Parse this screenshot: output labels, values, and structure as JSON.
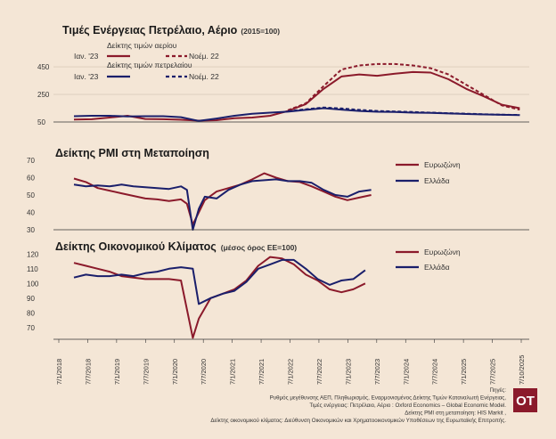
{
  "logo_text": "OT",
  "colors": {
    "eurozone_gas": "#8b1a2b",
    "greece_oil": "#1a1f6b",
    "background": "#f4e6d6",
    "grid": "#c8b8a8"
  },
  "x_axis_labels": [
    "7/1/2018",
    "7/7/2018",
    "7/1/2019",
    "7/7/2019",
    "7/1/2020",
    "7/7/2020",
    "7/1/2021",
    "7/7/2021",
    "7/1/2022",
    "7/7/2022",
    "7/1/2023",
    "7/7/2023",
    "7/1/2024",
    "7/7/2024",
    "7/1/2025",
    "7/7/2025",
    "7/10/2025"
  ],
  "source_lines": [
    "Πηγές:",
    "Ρυθμός μεγέθυνσης ΑΕΠ, Πληθωρισμός, Εναρμονισμένος Δείκτης Τιμών Καταναλωτή Ενέργειας,",
    "Τιμές ενέργειας: Πετρέλαιο, Αέριο : Oxford Economics – Global Economic Model.",
    "Δείκτης PMI στη μεταποίηση: HIS Markit ,",
    "Δείκτης οικονομικού κλίματος: Διεύθυνση Οικονομικών και Χρηματοοικονομικών Υποθέσεων της Ευρωπαϊκής Επιτροπής."
  ],
  "chart_data": [
    {
      "type": "line",
      "title": "Τιμές Ενέργειας Πετρέλαιο, Αέριο",
      "subtitle": "(2015=100)",
      "yticks": [
        50,
        250,
        450
      ],
      "ylim": [
        50,
        560
      ],
      "legend": {
        "gas_title": "Δείκτης τιμών αερίου",
        "oil_title": "Δείκτης τιμών πετρελαίου",
        "jan_label": "Ιαν. '23",
        "nov_label": "Νοέμ. 22"
      },
      "x": [
        2018.3,
        2018.6,
        2018.9,
        2019.2,
        2019.5,
        2019.8,
        2020.1,
        2020.4,
        2020.7,
        2021.0,
        2021.3,
        2021.6,
        2021.9,
        2022.2,
        2022.5,
        2022.8,
        2023.1,
        2023.4,
        2023.7,
        2024.0,
        2024.3,
        2024.6,
        2024.9,
        2025.2,
        2025.5,
        2025.8
      ],
      "series": [
        {
          "name": "Δείκτης τιμών αερίου — Ιαν. '23",
          "style": "solid",
          "color": "#8b1a2b",
          "values": [
            68,
            70,
            82,
            95,
            72,
            70,
            66,
            60,
            63,
            78,
            82,
            95,
            130,
            180,
            290,
            380,
            395,
            385,
            400,
            412,
            408,
            360,
            290,
            235,
            175,
            150
          ]
        },
        {
          "name": "Δείκτης τιμών αερίου — Νοέμ. 22",
          "style": "dashed",
          "color": "#8b1a2b",
          "values": [
            null,
            null,
            null,
            null,
            null,
            null,
            null,
            null,
            null,
            null,
            null,
            null,
            135,
            185,
            310,
            430,
            460,
            470,
            470,
            460,
            440,
            395,
            320,
            245,
            170,
            140
          ]
        },
        {
          "name": "Δείκτης τιμών πετρελαίου — Ιαν. '23",
          "style": "solid",
          "color": "#1a1f6b",
          "values": [
            92,
            95,
            95,
            90,
            92,
            92,
            85,
            58,
            75,
            95,
            110,
            118,
            125,
            138,
            150,
            140,
            130,
            124,
            122,
            118,
            116,
            112,
            108,
            105,
            102,
            100
          ]
        },
        {
          "name": "Δείκτης τιμών πετρελαίου — Νοέμ. 22",
          "style": "dashed",
          "color": "#1a1f6b",
          "values": [
            null,
            null,
            null,
            null,
            null,
            null,
            null,
            null,
            null,
            null,
            null,
            null,
            128,
            142,
            155,
            148,
            138,
            130,
            126,
            122,
            118,
            114,
            110,
            106,
            103,
            101
          ]
        }
      ]
    },
    {
      "type": "line",
      "title": "Δείκτης PMI στη Μεταποίηση",
      "yticks": [
        30,
        40,
        50,
        60,
        70
      ],
      "ylim": [
        30,
        70
      ],
      "x": [
        2018.3,
        2018.5,
        2018.7,
        2018.9,
        2019.1,
        2019.3,
        2019.5,
        2019.7,
        2019.9,
        2020.1,
        2020.2,
        2020.3,
        2020.4,
        2020.5,
        2020.7,
        2020.9,
        2021.1,
        2021.3,
        2021.5,
        2021.7,
        2021.9,
        2022.1,
        2022.3,
        2022.5,
        2022.7,
        2022.9,
        2023.1,
        2023.3
      ],
      "series": [
        {
          "name": "Ευρωζώνη",
          "color": "#8b1a2b",
          "values": [
            59.5,
            57.5,
            54,
            52.5,
            51,
            49.5,
            48,
            47.5,
            46.5,
            47.5,
            45,
            33,
            40,
            47,
            52,
            54,
            56,
            59,
            62.5,
            60,
            58,
            57.5,
            55,
            52,
            49,
            47,
            48.5,
            50
          ]
        },
        {
          "name": "Ελλάδα",
          "color": "#1a1f6b",
          "values": [
            56,
            55,
            55.5,
            55,
            56,
            55,
            54.5,
            54,
            53.5,
            55,
            53,
            30,
            42,
            49,
            48,
            53,
            56,
            58,
            58.5,
            59,
            58,
            58,
            57,
            53,
            50,
            49,
            52,
            53
          ]
        }
      ]
    },
    {
      "type": "line",
      "title": "Δείκτης Οικονομικού Κλίματος",
      "subtitle": "(μέσος όρος ΕΕ=100)",
      "yticks": [
        70,
        80,
        90,
        100,
        110,
        120
      ],
      "ylim": [
        62,
        122
      ],
      "x": [
        2018.3,
        2018.5,
        2018.7,
        2018.9,
        2019.1,
        2019.3,
        2019.5,
        2019.7,
        2019.9,
        2020.1,
        2020.3,
        2020.4,
        2020.6,
        2020.8,
        2021.0,
        2021.2,
        2021.4,
        2021.6,
        2021.8,
        2022.0,
        2022.2,
        2022.4,
        2022.6,
        2022.8,
        2023.0,
        2023.2
      ],
      "series": [
        {
          "name": "Ευρωζώνη",
          "color": "#8b1a2b",
          "values": [
            114,
            112,
            110,
            108,
            105,
            104,
            103,
            103,
            103,
            102,
            63,
            76,
            90,
            93,
            96,
            102,
            112,
            118,
            117,
            113,
            106,
            102,
            96,
            94,
            96,
            100
          ]
        },
        {
          "name": "Ελλάδα",
          "color": "#1a1f6b",
          "values": [
            104,
            106,
            105,
            105,
            106,
            105,
            107,
            108,
            110,
            111,
            110,
            86,
            90,
            93,
            95,
            101,
            110,
            113,
            116,
            116,
            110,
            103,
            99,
            102,
            103,
            109
          ]
        }
      ]
    }
  ]
}
